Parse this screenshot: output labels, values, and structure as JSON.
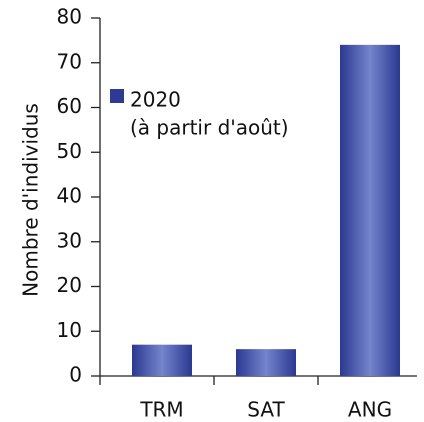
{
  "chart_data": {
    "type": "bar",
    "y_label": "Nombre d'individus",
    "categories": [
      "TRM",
      "SAT",
      "ANG"
    ],
    "series": [
      {
        "name": "2020",
        "color": "#2e3a94",
        "values": [
          7,
          6,
          74
        ]
      }
    ],
    "legend_note": "(à partir d'août)",
    "ylim": [
      0,
      80
    ],
    "yticks": [
      0,
      10,
      20,
      30,
      40,
      50,
      60,
      70,
      80
    ]
  }
}
